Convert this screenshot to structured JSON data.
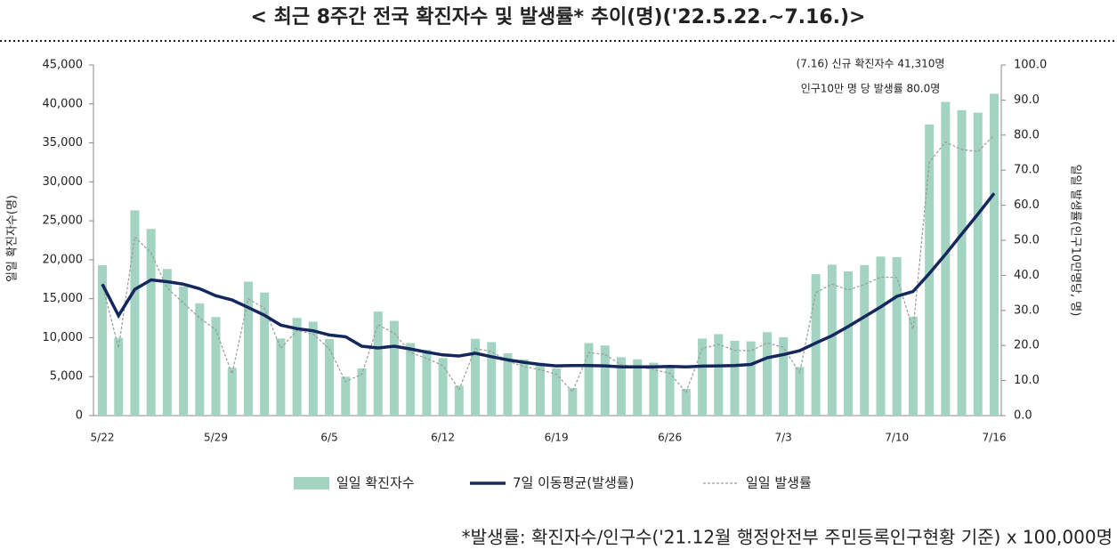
{
  "chart_data": {
    "type": "bar_line",
    "title": "< 최근 8주간 전국 확진자수 및 발생률* 추이(명)('22.5.22.~7.16.)>",
    "y_label": "일일 확진자수(명)",
    "y2_label": "일일 발생률(인구10만명당, 명)",
    "annotations": [
      "(7.16) 신규 확진자수 41,310명",
      "인구10만 명 당 발생률 80.0명"
    ],
    "footnote": "*발생률: 확진자수/인구수('21.12월 행정안전부 주민등록인구현황 기준) x 100,000명",
    "categories": [
      "5/22",
      null,
      null,
      null,
      null,
      null,
      null,
      "5/29",
      null,
      null,
      null,
      null,
      null,
      null,
      "6/5",
      null,
      null,
      null,
      null,
      null,
      null,
      "6/12",
      null,
      null,
      null,
      null,
      null,
      null,
      "6/19",
      null,
      null,
      null,
      null,
      null,
      null,
      "6/26",
      null,
      null,
      null,
      null,
      null,
      null,
      "7/3",
      null,
      null,
      null,
      null,
      null,
      null,
      "7/10",
      null,
      null,
      null,
      null,
      null,
      "7/16"
    ],
    "series": [
      {
        "name": "일일 확진자수",
        "kind": "bar",
        "axis": "y",
        "color": "#a3d4c1",
        "values": [
          19298,
          9975,
          26344,
          23956,
          18816,
          16584,
          14410,
          12654,
          6141,
          17191,
          15797,
          9897,
          12542,
          12046,
          9832,
          4999,
          6068,
          13358,
          12161,
          9314,
          8438,
          7380,
          3828,
          9855,
          9435,
          7995,
          7206,
          6786,
          6068,
          3530,
          9305,
          9007,
          7494,
          7224,
          6789,
          6246,
          3423,
          9896,
          10463,
          9595,
          9528,
          10715,
          10059,
          6253,
          18147,
          19371,
          18511,
          19323,
          20410,
          20342,
          12693,
          37360,
          40266,
          39196,
          38882,
          41310
        ]
      },
      {
        "name": "7일 이동평균(발생률)",
        "kind": "line",
        "axis": "y2",
        "color": "#14285e",
        "values": [
          37.5,
          28.5,
          36.0,
          38.7,
          38.2,
          37.5,
          36.2,
          34.2,
          33.0,
          30.8,
          28.6,
          25.8,
          24.8,
          24.2,
          23.0,
          22.5,
          19.8,
          19.3,
          19.8,
          19.0,
          18.1,
          17.3,
          17.0,
          17.8,
          16.8,
          15.9,
          15.2,
          14.6,
          14.2,
          14.3,
          14.3,
          14.2,
          13.9,
          13.9,
          13.9,
          14.0,
          13.9,
          14.1,
          14.2,
          14.3,
          14.6,
          16.5,
          17.4,
          18.5,
          20.7,
          22.8,
          25.4,
          28.2,
          31.0,
          34.0,
          35.4,
          40.5,
          46.0,
          51.8,
          57.5,
          63.4
        ]
      },
      {
        "name": "일일 발생률",
        "kind": "dashed",
        "axis": "y2",
        "color": "#9a9a9a",
        "values": [
          37.4,
          19.3,
          51.0,
          46.4,
          36.4,
          32.1,
          27.9,
          24.5,
          11.9,
          33.3,
          30.6,
          19.2,
          24.3,
          23.3,
          19.0,
          9.7,
          11.8,
          25.9,
          23.5,
          18.0,
          16.3,
          14.3,
          7.4,
          19.1,
          18.3,
          15.5,
          14.0,
          13.1,
          11.8,
          6.8,
          18.0,
          17.4,
          14.5,
          14.0,
          13.1,
          12.1,
          6.6,
          19.2,
          20.3,
          18.6,
          18.5,
          20.7,
          19.5,
          12.1,
          35.1,
          37.5,
          35.8,
          37.4,
          39.5,
          39.4,
          24.6,
          72.3,
          78.0,
          75.9,
          75.3,
          80.0
        ]
      }
    ],
    "ylim": [
      0,
      45000
    ],
    "yticks": [
      0,
      {
        "value": 5000,
        "label": "5,000"
      },
      {
        "value": 10000,
        "label": "10,000"
      },
      {
        "value": 15000,
        "label": "15,000"
      },
      {
        "value": 20000,
        "label": "20,000"
      },
      {
        "value": 25000,
        "label": "25,000"
      },
      {
        "value": 30000,
        "label": "30,000"
      },
      {
        "value": 35000,
        "label": "35,000"
      },
      {
        "value": 40000,
        "label": "40,000"
      },
      {
        "value": 45000,
        "label": "45,000"
      }
    ],
    "y2lim": [
      0,
      100
    ],
    "y2ticks": [
      {
        "value": 0,
        "label": "0.0"
      },
      {
        "value": 10,
        "label": "10.0"
      },
      {
        "value": 20,
        "label": "20.0"
      },
      {
        "value": 30,
        "label": "30.0"
      },
      {
        "value": 40,
        "label": "40.0"
      },
      {
        "value": 50,
        "label": "50.0"
      },
      {
        "value": 60,
        "label": "60.0"
      },
      {
        "value": 70,
        "label": "70.0"
      },
      {
        "value": 80,
        "label": "80.0"
      },
      {
        "value": 90,
        "label": "90.0"
      },
      {
        "value": 100,
        "label": "100.0"
      }
    ]
  }
}
